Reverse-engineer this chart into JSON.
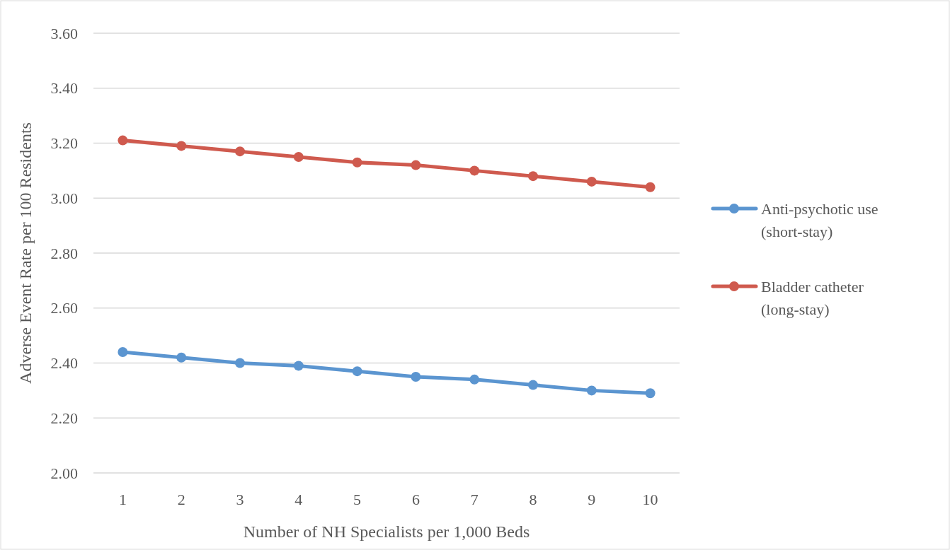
{
  "chart_data": {
    "type": "line",
    "xlabel": "Number of NH Specialists per 1,000 Beds",
    "ylabel": "Adverse Event Rate per 100 Residents",
    "categories": [
      "1",
      "2",
      "3",
      "4",
      "5",
      "6",
      "7",
      "8",
      "9",
      "10"
    ],
    "series": [
      {
        "name": "Anti-psychotic use (short-stay)",
        "color": "#5b95d0",
        "values": [
          2.44,
          2.42,
          2.4,
          2.39,
          2.37,
          2.35,
          2.34,
          2.32,
          2.3,
          2.29
        ]
      },
      {
        "name": "Bladder catheter (long-stay)",
        "color": "#cf5a4e",
        "values": [
          3.21,
          3.19,
          3.17,
          3.15,
          3.13,
          3.12,
          3.1,
          3.08,
          3.06,
          3.04
        ]
      }
    ],
    "ylim": [
      2.0,
      3.6
    ],
    "yticks": [
      {
        "value": 2.0,
        "label": "2.00"
      },
      {
        "value": 2.2,
        "label": "2.20"
      },
      {
        "value": 2.4,
        "label": "2.40"
      },
      {
        "value": 2.6,
        "label": "2.60"
      },
      {
        "value": 2.8,
        "label": "2.80"
      },
      {
        "value": 3.0,
        "label": "3.00"
      },
      {
        "value": 3.2,
        "label": "3.20"
      },
      {
        "value": 3.4,
        "label": "3.40"
      },
      {
        "value": 3.6,
        "label": "3.60"
      }
    ],
    "grid": "y",
    "legend": "right",
    "marker": "circle",
    "line_style": "solid"
  }
}
